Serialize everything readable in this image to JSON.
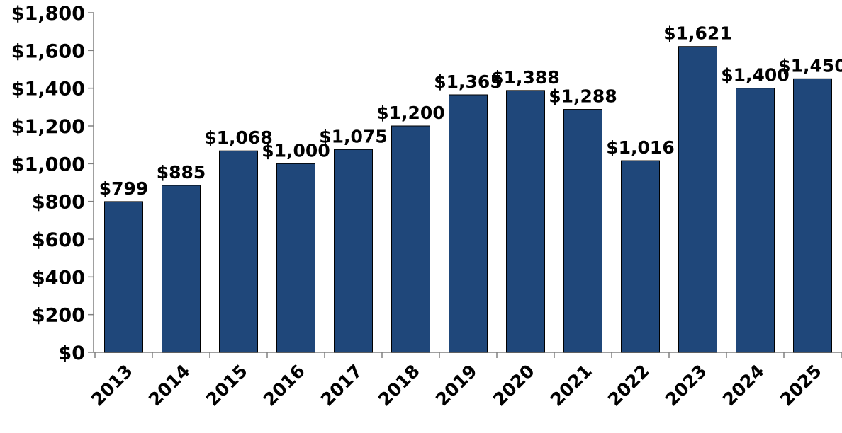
{
  "chart_data": {
    "type": "bar",
    "title": "",
    "xlabel": "",
    "ylabel": "",
    "categories": [
      "2013",
      "2014",
      "2015",
      "2016",
      "2017",
      "2018",
      "2019",
      "2020",
      "2021",
      "2022",
      "2023",
      "2024",
      "2025"
    ],
    "values": [
      799,
      885,
      1068,
      1000,
      1075,
      1200,
      1365,
      1388,
      1288,
      1016,
      1621,
      1400,
      1450
    ],
    "data_labels": [
      "$799",
      "$885",
      "$1,068",
      "$1,000",
      "$1,075",
      "$1,200",
      "$1,365",
      "$1,388",
      "$1,288",
      "$1,016",
      "$1,621",
      "$1,400",
      "$1,450"
    ],
    "ylim": [
      0,
      1800
    ],
    "yticks": [
      0,
      200,
      400,
      600,
      800,
      1000,
      1200,
      1400,
      1600,
      1800
    ],
    "ytick_labels": [
      "$0",
      "$200",
      "$400",
      "$600",
      "$800",
      "$1,000",
      "$1,200",
      "$1,400",
      "$1,600",
      "$1,800"
    ],
    "grid": false,
    "legend": "none",
    "colors": {
      "bar": "#1f477a",
      "bar_stroke": "#000000",
      "axis": "#808080"
    }
  }
}
